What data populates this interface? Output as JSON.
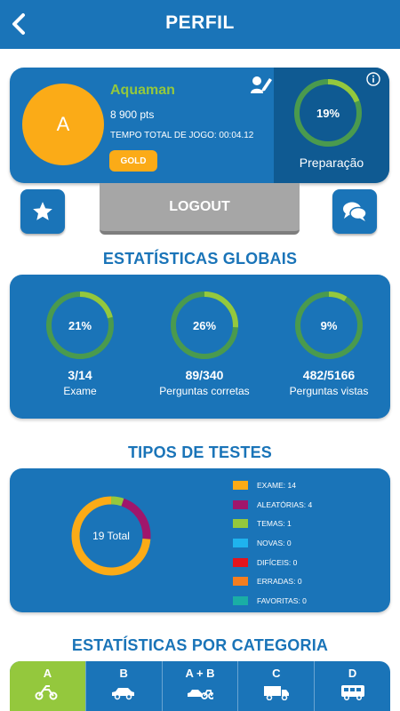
{
  "header": {
    "title": "PERFIL",
    "back_icon": "chevron-left-icon"
  },
  "profile": {
    "avatar_letter": "A",
    "username": "Aquaman",
    "points": "8 900 pts",
    "playtime": "TEMPO TOTAL DE JOGO: 00:04.12",
    "badge": "GOLD",
    "preparation_percent": "19%",
    "preparation_value": 0.19,
    "preparation_label": "Preparação"
  },
  "actions": {
    "logout": "LOGOUT",
    "favorites_icon": "star-icon",
    "chat_icon": "chat-bubbles-icon"
  },
  "global_stats": {
    "title": "ESTATÍSTICAS GLOBAIS",
    "items": [
      {
        "percent": "21%",
        "value": 0.21,
        "count": "3/14",
        "label": "Exame"
      },
      {
        "percent": "26%",
        "value": 0.26,
        "count": "89/340",
        "label": "Perguntas corretas"
      },
      {
        "percent": "9%",
        "value": 0.09,
        "count": "482/5166",
        "label": "Perguntas vistas"
      }
    ]
  },
  "test_types": {
    "title": "TIPOS DE TESTES",
    "total": "19 Total",
    "legend": [
      {
        "label": "EXAME: 14",
        "color": "#fbab17"
      },
      {
        "label": "ALEATÓRIAS: 4",
        "color": "#a0166c"
      },
      {
        "label": "TEMAS: 1",
        "color": "#94c83d"
      },
      {
        "label": "NOVAS: 0",
        "color": "#1fb3ee"
      },
      {
        "label": "DIFÍCEIS: 0",
        "color": "#e3141e"
      },
      {
        "label": "ERRADAS: 0",
        "color": "#f47e20"
      },
      {
        "label": "FAVORITAS: 0",
        "color": "#1aaea5"
      }
    ]
  },
  "chart_data": {
    "type": "pie",
    "categories": [
      "EXAME",
      "ALEATÓRIAS",
      "TEMAS",
      "NOVAS",
      "DIFÍCEIS",
      "ERRADAS",
      "FAVORITAS"
    ],
    "values": [
      14,
      4,
      1,
      0,
      0,
      0,
      0
    ],
    "colors": [
      "#fbab17",
      "#a0166c",
      "#94c83d",
      "#1fb3ee",
      "#e3141e",
      "#f47e20",
      "#1aaea5"
    ],
    "title": ""
  },
  "categories": {
    "title": "ESTATÍSTICAS POR CATEGORIA",
    "tabs": [
      {
        "label": "A",
        "icon": "motorcycle-icon",
        "active": true
      },
      {
        "label": "B",
        "icon": "car-icon",
        "active": false
      },
      {
        "label": "A + B",
        "icon": "motorcycle-and-car-icon",
        "active": false
      },
      {
        "label": "C",
        "icon": "truck-icon",
        "active": false
      },
      {
        "label": "D",
        "icon": "bus-icon",
        "active": false
      }
    ]
  },
  "colors": {
    "primary": "#1a74b8",
    "primary_dark": "#0f5a92",
    "accent_green": "#94c83d",
    "gold": "#fbab17",
    "ring_track": "#4a9a4e"
  }
}
